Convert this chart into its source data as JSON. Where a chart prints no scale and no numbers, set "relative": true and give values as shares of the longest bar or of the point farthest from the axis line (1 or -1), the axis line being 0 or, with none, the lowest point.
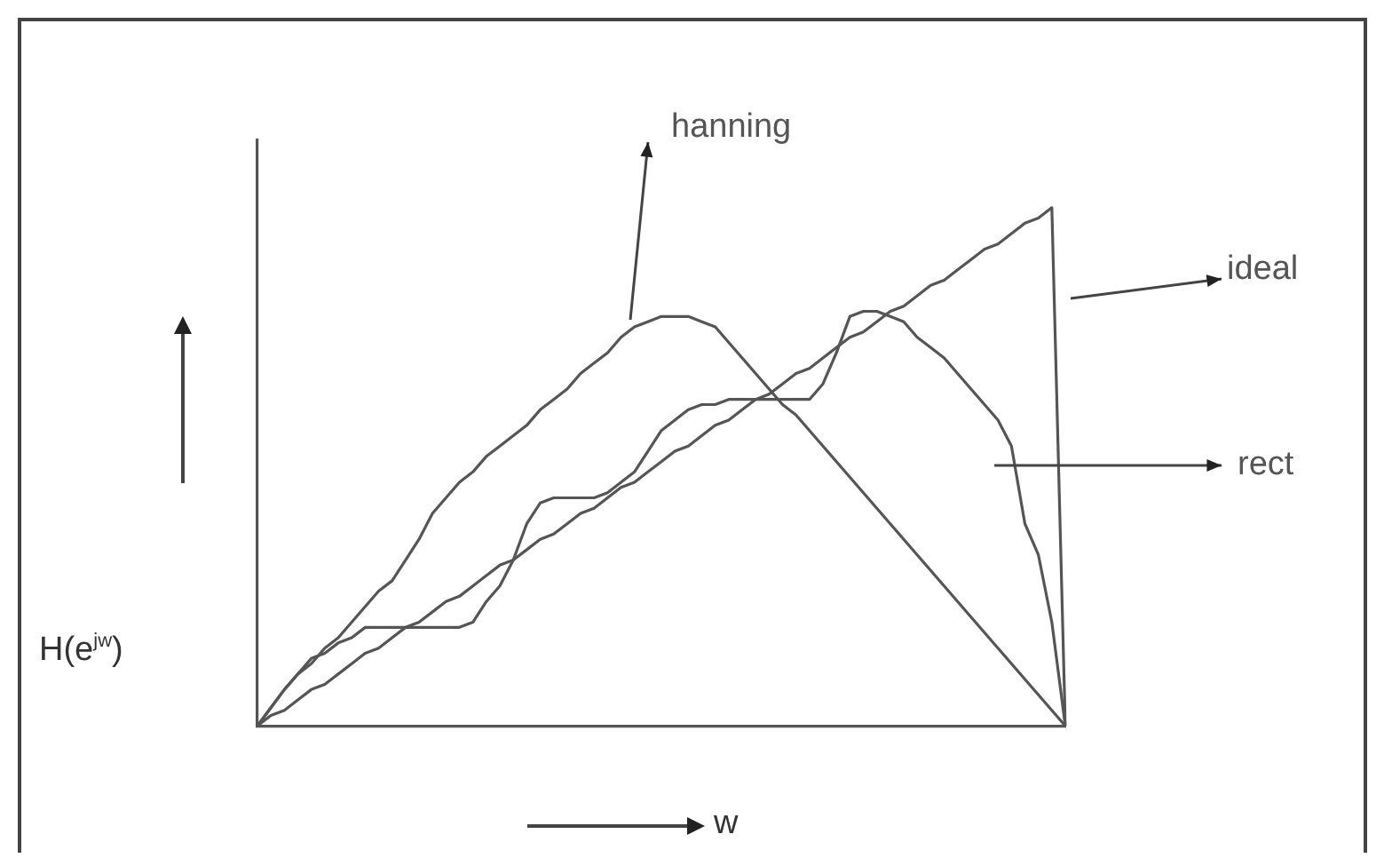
{
  "chart_data": {
    "type": "line",
    "relative": true,
    "xlabel": "w",
    "ylabel": "H(e$^{jw}$)",
    "marker": "none",
    "line_style": "solid",
    "categories": [
      null,
      null,
      null,
      null,
      null,
      null,
      null,
      null,
      null,
      null,
      null,
      null,
      null,
      null,
      null,
      null,
      null,
      null,
      null,
      null,
      null,
      null,
      null,
      null,
      null,
      null,
      null,
      null,
      null,
      null,
      null,
      null,
      null,
      null,
      null,
      null,
      null,
      null,
      null,
      null,
      null,
      null,
      null,
      null,
      null,
      null,
      null,
      null,
      null,
      null,
      null,
      null,
      null,
      null,
      null,
      null,
      null,
      null,
      null,
      null,
      null
    ],
    "series": [
      {
        "name": "hanning",
        "color": "#555555",
        "values": [
          0,
          0.035,
          0.07,
          0.1,
          0.12,
          0.15,
          0.17,
          0.2,
          0.23,
          0.26,
          0.28,
          0.32,
          0.36,
          0.41,
          0.44,
          0.47,
          0.49,
          0.52,
          0.54,
          0.56,
          0.58,
          0.61,
          0.63,
          0.65,
          0.68,
          0.7,
          0.72,
          0.75,
          0.77,
          0.78,
          0.79,
          0.79,
          0.79,
          0.78,
          0.77,
          0.74,
          0.71,
          0.68,
          0.65,
          0.62,
          0.6,
          0.57,
          0.54,
          0.51,
          0.48,
          0.45,
          0.42,
          0.39,
          0.36,
          0.33,
          0.3,
          0.27,
          0.24,
          0.21,
          0.18,
          0.15,
          0.12,
          0.09,
          0.06,
          0.03,
          0
        ]
      },
      {
        "name": "ideal",
        "color": "#555555",
        "values": [
          0,
          0.02,
          0.03,
          0.05,
          0.07,
          0.08,
          0.1,
          0.12,
          0.14,
          0.15,
          0.17,
          0.19,
          0.2,
          0.22,
          0.24,
          0.25,
          0.27,
          0.29,
          0.31,
          0.32,
          0.34,
          0.36,
          0.37,
          0.39,
          0.41,
          0.42,
          0.44,
          0.46,
          0.47,
          0.49,
          0.51,
          0.53,
          0.54,
          0.56,
          0.58,
          0.59,
          0.61,
          0.63,
          0.64,
          0.66,
          0.68,
          0.69,
          0.71,
          0.73,
          0.75,
          0.76,
          0.78,
          0.8,
          0.81,
          0.83,
          0.85,
          0.86,
          0.88,
          0.9,
          0.92,
          0.93,
          0.95,
          0.97,
          0.98,
          1,
          0
        ]
      },
      {
        "name": "rect",
        "color": "#555555",
        "values": [
          0,
          0.035,
          0.07,
          0.1,
          0.13,
          0.14,
          0.16,
          0.17,
          0.19,
          0.19,
          0.19,
          0.19,
          0.19,
          0.19,
          0.19,
          0.19,
          0.2,
          0.24,
          0.27,
          0.32,
          0.39,
          0.43,
          0.44,
          0.44,
          0.44,
          0.44,
          0.45,
          0.47,
          0.49,
          0.53,
          0.57,
          0.59,
          0.61,
          0.62,
          0.62,
          0.63,
          0.63,
          0.63,
          0.63,
          0.63,
          0.63,
          0.63,
          0.66,
          0.72,
          0.79,
          0.8,
          0.8,
          0.79,
          0.78,
          0.75,
          0.73,
          0.71,
          0.68,
          0.65,
          0.62,
          0.59,
          0.54,
          0.39,
          0.33,
          0.2,
          0
        ]
      }
    ]
  }
}
